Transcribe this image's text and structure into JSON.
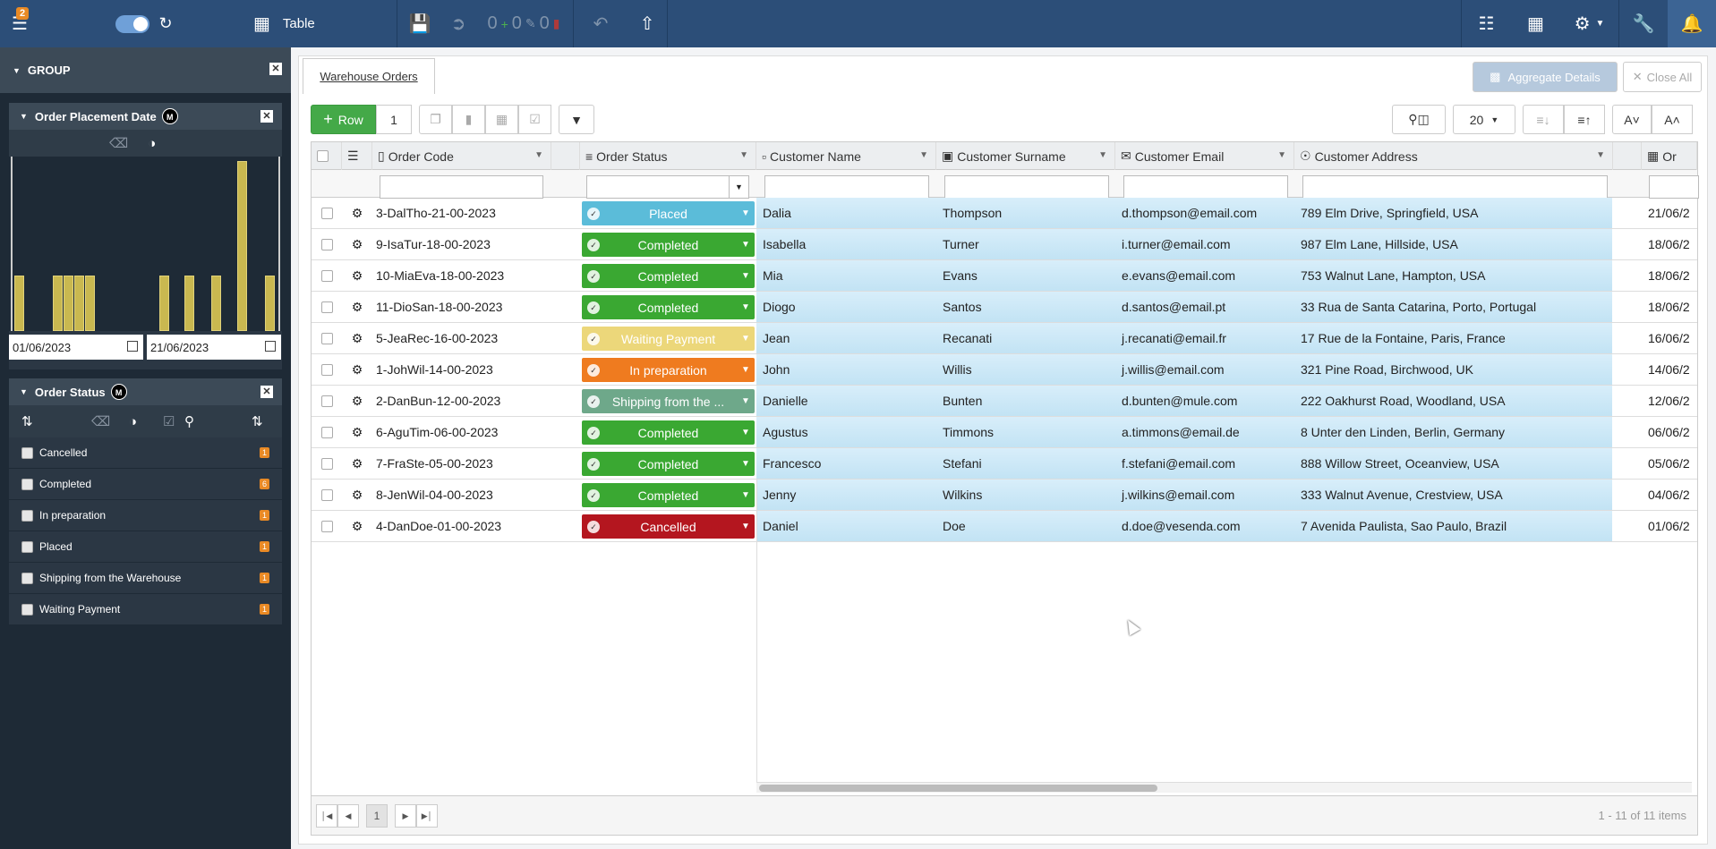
{
  "topbar": {
    "notification_count": "2",
    "view_label": "Table",
    "counters": [
      "0",
      "0",
      "0"
    ]
  },
  "sidebar": {
    "group_title": "GROUP",
    "date_panel": {
      "title": "Order Placement Date",
      "badge": "M",
      "from": "01/06/2023",
      "to": "21/06/2023"
    },
    "status_panel": {
      "title": "Order Status",
      "badge": "M",
      "items": [
        {
          "label": "Cancelled",
          "count": "1"
        },
        {
          "label": "Completed",
          "count": "6"
        },
        {
          "label": "In preparation",
          "count": "1"
        },
        {
          "label": "Placed",
          "count": "1"
        },
        {
          "label": "Shipping from the Warehouse",
          "count": "1"
        },
        {
          "label": "Waiting Payment",
          "count": "1"
        }
      ]
    }
  },
  "main": {
    "tab_label": "Warehouse Orders",
    "aggregate_label": "Aggregate Details",
    "close_all_label": "Close All",
    "add_row_label": "Row",
    "row_count": "1",
    "page_size": "20",
    "columns": [
      "Order Code",
      "Order Status",
      "Customer Name",
      "Customer Surname",
      "Customer Email",
      "Customer Address",
      "Or"
    ],
    "rows": [
      {
        "code": "3-DalTho-21-00-2023",
        "status": "Placed",
        "name": "Dalia",
        "surname": "Thompson",
        "email": "d.thompson@email.com",
        "address": "789 Elm Drive, Springfield, USA",
        "date": "21/06/2"
      },
      {
        "code": "9-IsaTur-18-00-2023",
        "status": "Completed",
        "name": "Isabella",
        "surname": "Turner",
        "email": "i.turner@email.com",
        "address": "987 Elm Lane, Hillside, USA",
        "date": "18/06/2"
      },
      {
        "code": "10-MiaEva-18-00-2023",
        "status": "Completed",
        "name": "Mia",
        "surname": "Evans",
        "email": "e.evans@email.com",
        "address": "753 Walnut Lane, Hampton, USA",
        "date": "18/06/2"
      },
      {
        "code": "11-DioSan-18-00-2023",
        "status": "Completed",
        "name": "Diogo",
        "surname": "Santos",
        "email": "d.santos@email.pt",
        "address": "33 Rua de Santa Catarina, Porto, Portugal",
        "date": "18/06/2"
      },
      {
        "code": "5-JeaRec-16-00-2023",
        "status": "Waiting Payment",
        "name": "Jean",
        "surname": "Recanati",
        "email": "j.recanati@email.fr",
        "address": "17 Rue de la Fontaine, Paris, France",
        "date": "16/06/2"
      },
      {
        "code": "1-JohWil-14-00-2023",
        "status": "In preparation",
        "name": "John",
        "surname": "Willis",
        "email": "j.willis@email.com",
        "address": "321 Pine Road, Birchwood, UK",
        "date": "14/06/2"
      },
      {
        "code": "2-DanBun-12-00-2023",
        "status": "Shipping from the ...",
        "name": "Danielle",
        "surname": "Bunten",
        "email": "d.bunten@mule.com",
        "address": "222 Oakhurst Road, Woodland, USA",
        "date": "12/06/2"
      },
      {
        "code": "6-AguTim-06-00-2023",
        "status": "Completed",
        "name": "Agustus",
        "surname": "Timmons",
        "email": "a.timmons@email.de",
        "address": "8 Unter den Linden, Berlin, Germany",
        "date": "06/06/2"
      },
      {
        "code": "7-FraSte-05-00-2023",
        "status": "Completed",
        "name": "Francesco",
        "surname": "Stefani",
        "email": "f.stefani@email.com",
        "address": "888 Willow Street, Oceanview, USA",
        "date": "05/06/2"
      },
      {
        "code": "8-JenWil-04-00-2023",
        "status": "Completed",
        "name": "Jenny",
        "surname": "Wilkins",
        "email": "j.wilkins@email.com",
        "address": "333 Walnut Avenue, Crestview, USA",
        "date": "04/06/2"
      },
      {
        "code": "4-DanDoe-01-00-2023",
        "status": "Cancelled",
        "name": "Daniel",
        "surname": "Doe",
        "email": "d.doe@vesenda.com",
        "address": "7 Avenida Paulista, Sao Paulo, Brazil",
        "date": "01/06/2"
      }
    ],
    "status_colors": {
      "Placed": "#5bbcd9",
      "Completed": "#3aa832",
      "Waiting Payment": "#ecd77a",
      "In preparation": "#ef7b1f",
      "Shipping from the ...": "#6ea88a",
      "Cancelled": "#b4161f"
    },
    "pager": {
      "page": "1",
      "summary": "1 - 11 of 11 items"
    }
  }
}
